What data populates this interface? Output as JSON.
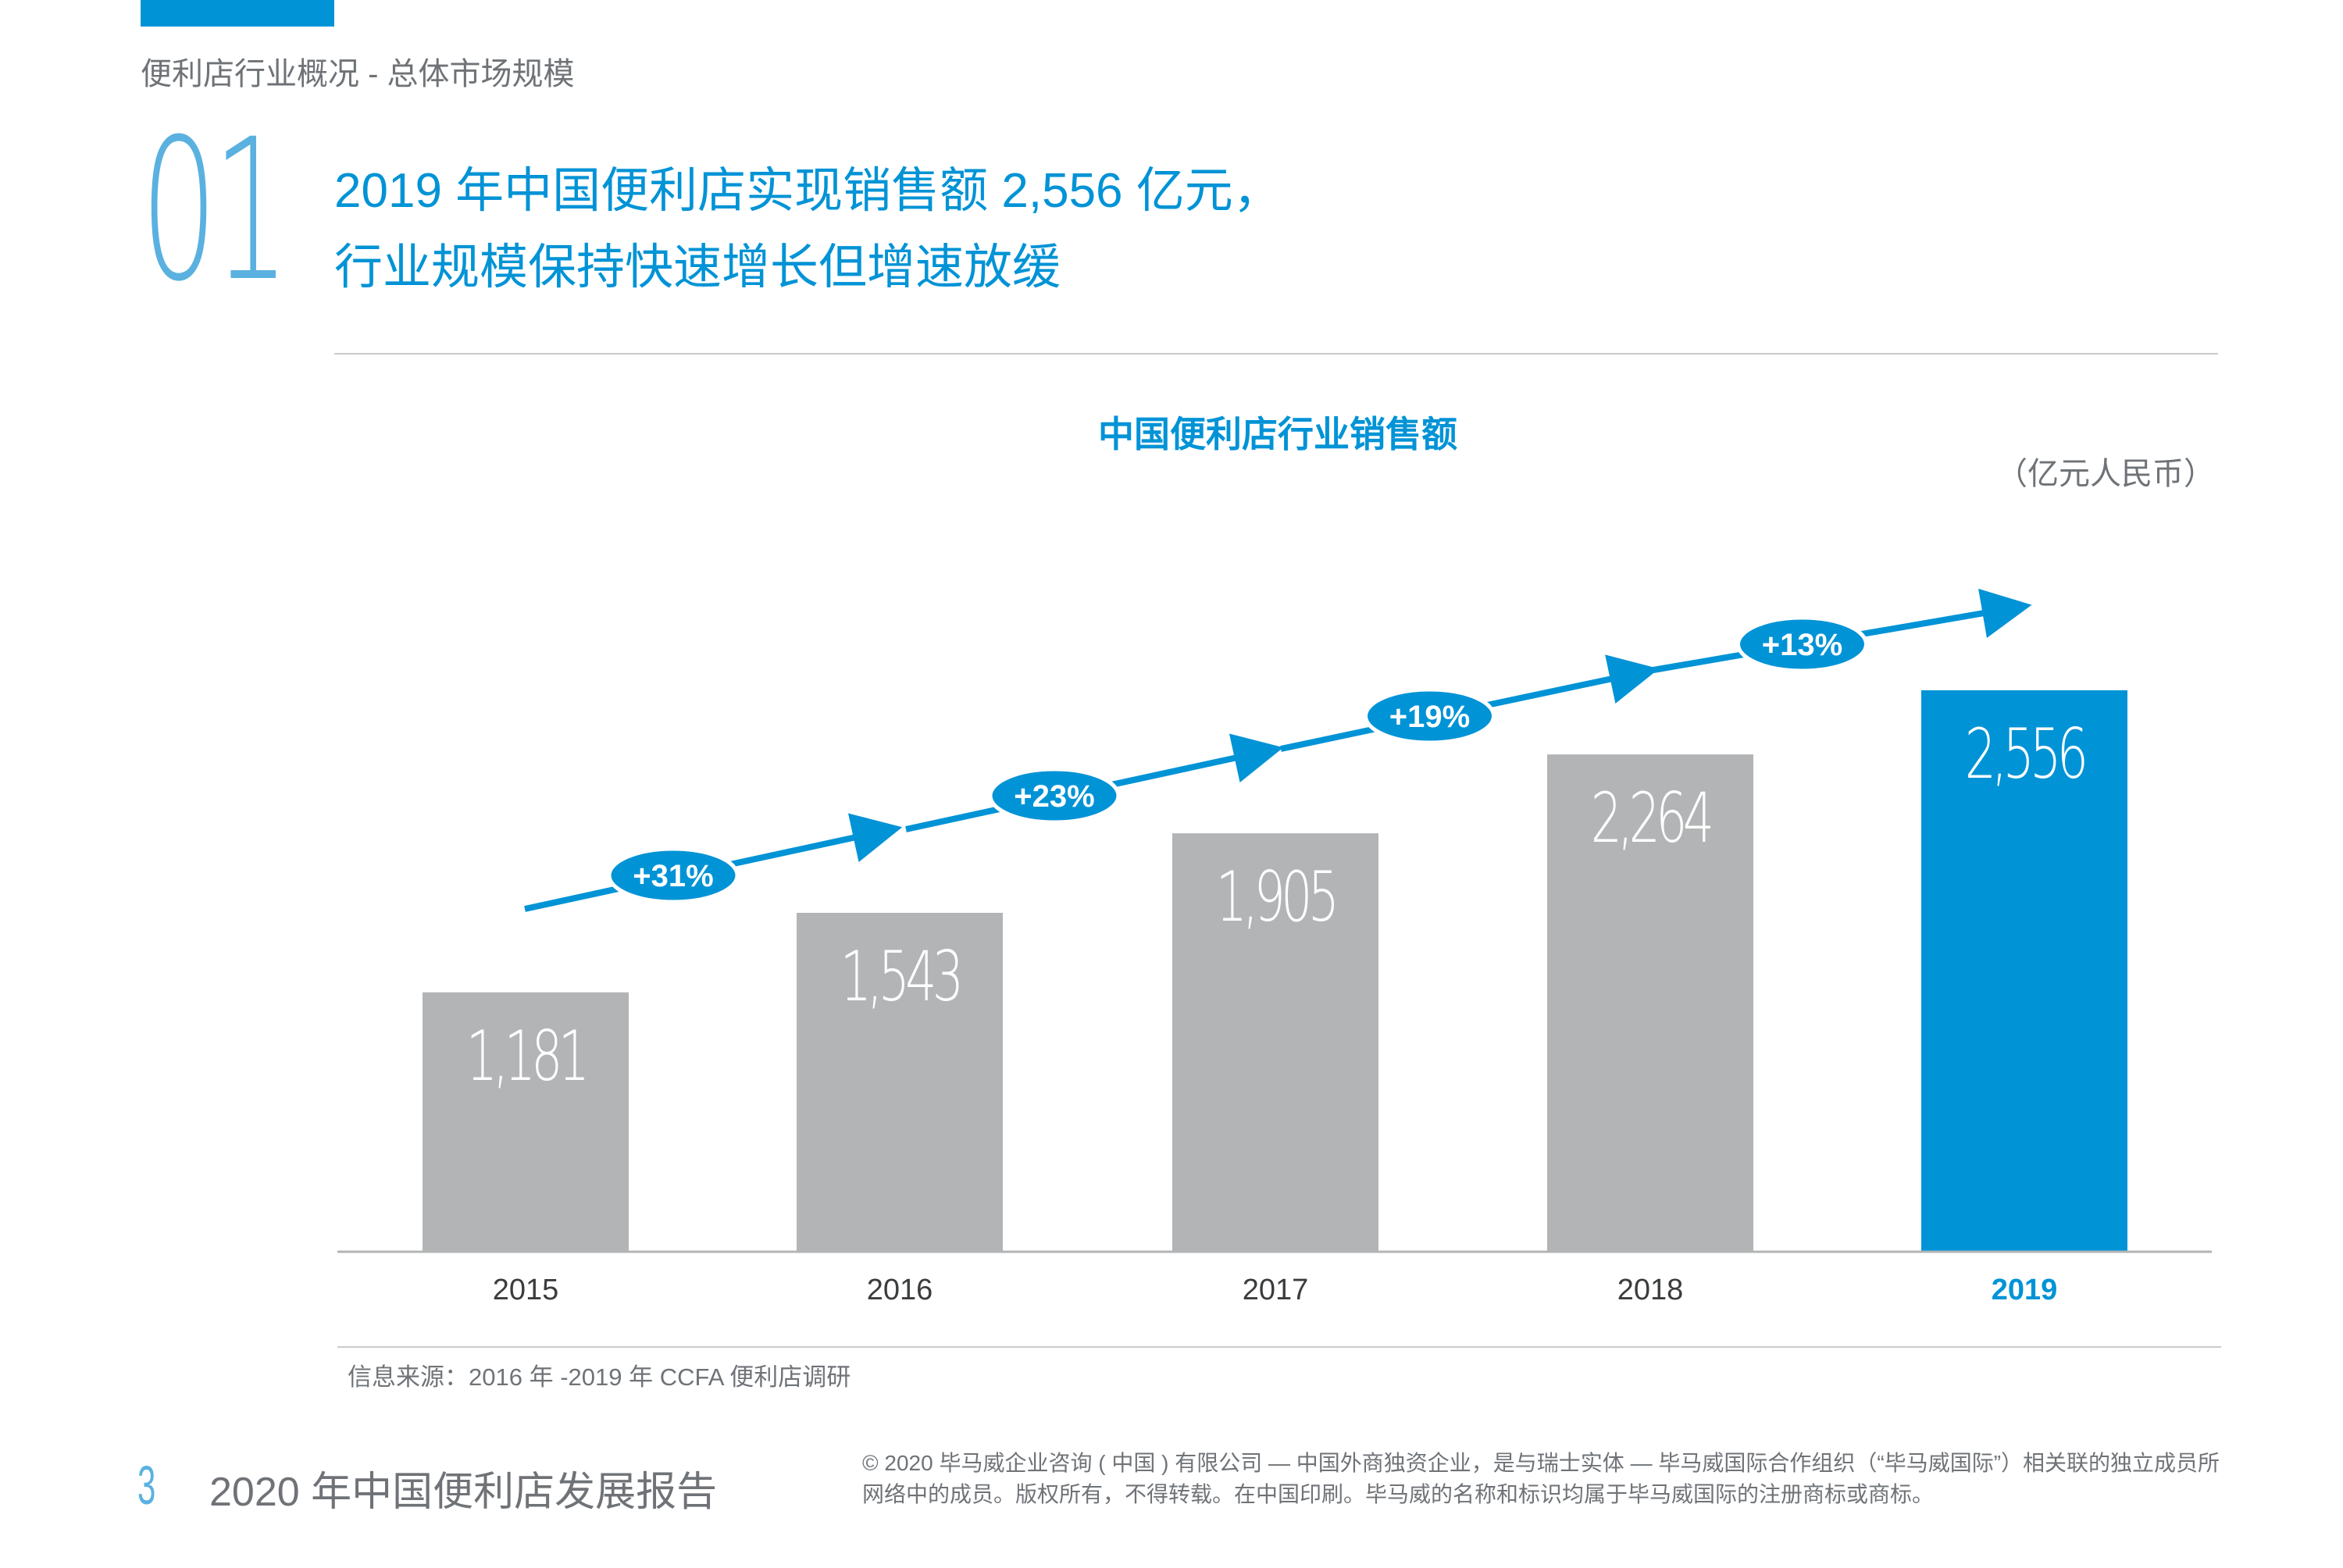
{
  "header": {
    "section_label": "便利店行业概况 - 总体市场规模",
    "section_number": "01",
    "headline_line1": "2019 年中国便利店实现销售额 2,556 亿元，",
    "headline_line2": "行业规模保持快速增长但增速放缓"
  },
  "chart_data": {
    "type": "bar",
    "title": "中国便利店行业销售额",
    "unit_label": "（亿元人民币）",
    "categories": [
      "2015",
      "2016",
      "2017",
      "2018",
      "2019"
    ],
    "values": [
      1181,
      1543,
      1905,
      2264,
      2556
    ],
    "value_labels": [
      "1,181",
      "1,543",
      "1,905",
      "2,264",
      "2,556"
    ],
    "growth_labels": [
      "+31%",
      "+23%",
      "+19%",
      "+13%"
    ],
    "highlight_category": "2019",
    "ylim": [
      0,
      2800
    ],
    "grid": false,
    "colors": {
      "default_bar": "#b3b4b6",
      "highlight_bar": "#0093d6",
      "arrow": "#0093d6"
    }
  },
  "source": "信息来源：2016 年 -2019 年 CCFA 便利店调研",
  "footer": {
    "page_number": "3",
    "report_title": "2020 年中国便利店发展报告",
    "legal": "© 2020 毕马威企业咨询 ( 中国 ) 有限公司 — 中国外商独资企业，是与瑞士实体 — 毕马威国际合作组织（“毕马威国际”）相关联的独立成员所网络中的成员。版权所有，不得转载。在中国印刷。毕马威的名称和标识均属于毕马威国际的注册商标或商标。"
  }
}
